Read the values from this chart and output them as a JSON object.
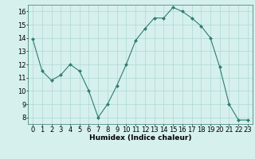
{
  "x": [
    0,
    1,
    2,
    3,
    4,
    5,
    6,
    7,
    8,
    9,
    10,
    11,
    12,
    13,
    14,
    15,
    16,
    17,
    18,
    19,
    20,
    21,
    22,
    23
  ],
  "y": [
    13.9,
    11.5,
    10.8,
    11.2,
    12.0,
    11.5,
    10.0,
    8.0,
    9.0,
    10.4,
    12.0,
    13.8,
    14.7,
    15.5,
    15.5,
    16.3,
    16.0,
    15.5,
    14.9,
    14.0,
    11.8,
    9.0,
    7.8,
    7.8
  ],
  "line_color": "#2e7d6e",
  "marker": "D",
  "marker_size": 2.0,
  "bg_color": "#d6f0ee",
  "grid_color": "#afd8d2",
  "xlabel": "Humidex (Indice chaleur)",
  "xlabel_fontsize": 6.5,
  "tick_fontsize": 6.0,
  "ylim": [
    7.5,
    16.5
  ],
  "xlim": [
    -0.5,
    23.5
  ],
  "yticks": [
    8,
    9,
    10,
    11,
    12,
    13,
    14,
    15,
    16
  ],
  "xticks": [
    0,
    1,
    2,
    3,
    4,
    5,
    6,
    7,
    8,
    9,
    10,
    11,
    12,
    13,
    14,
    15,
    16,
    17,
    18,
    19,
    20,
    21,
    22,
    23
  ]
}
